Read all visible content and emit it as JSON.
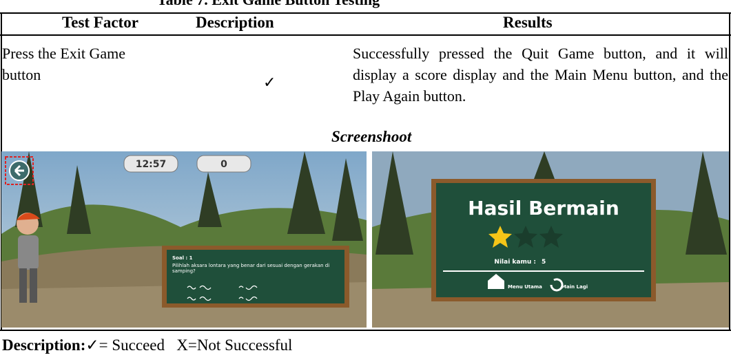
{
  "caption": "Table 7. Exit Game Button Testing",
  "table": {
    "headers": [
      "Test Factor",
      "Description",
      "Results"
    ],
    "rows": [
      [
        "Press the Exit Game button",
        "✓",
        "Successfully pressed the Quit Game button, and it will display a score display and the Main Menu button, and the Play Again button."
      ]
    ]
  },
  "screenshot_label": "Screenshoot",
  "screenshots": [
    {
      "timer": "12:57",
      "score": "0",
      "question_number": "Soal : 1",
      "question": "Pilihlah aksara lontara yang benar dari sesuai dengan gerakan di samping?"
    },
    {
      "title": "Hasil Bermain",
      "score_label": "Nilai kamu :",
      "score": "5",
      "menu_button": "Menu Utama",
      "replay_button": "Main Lagi"
    }
  ],
  "legend": {
    "label": "Description:",
    "text": "✓= Succeed   X=Not Successful"
  }
}
